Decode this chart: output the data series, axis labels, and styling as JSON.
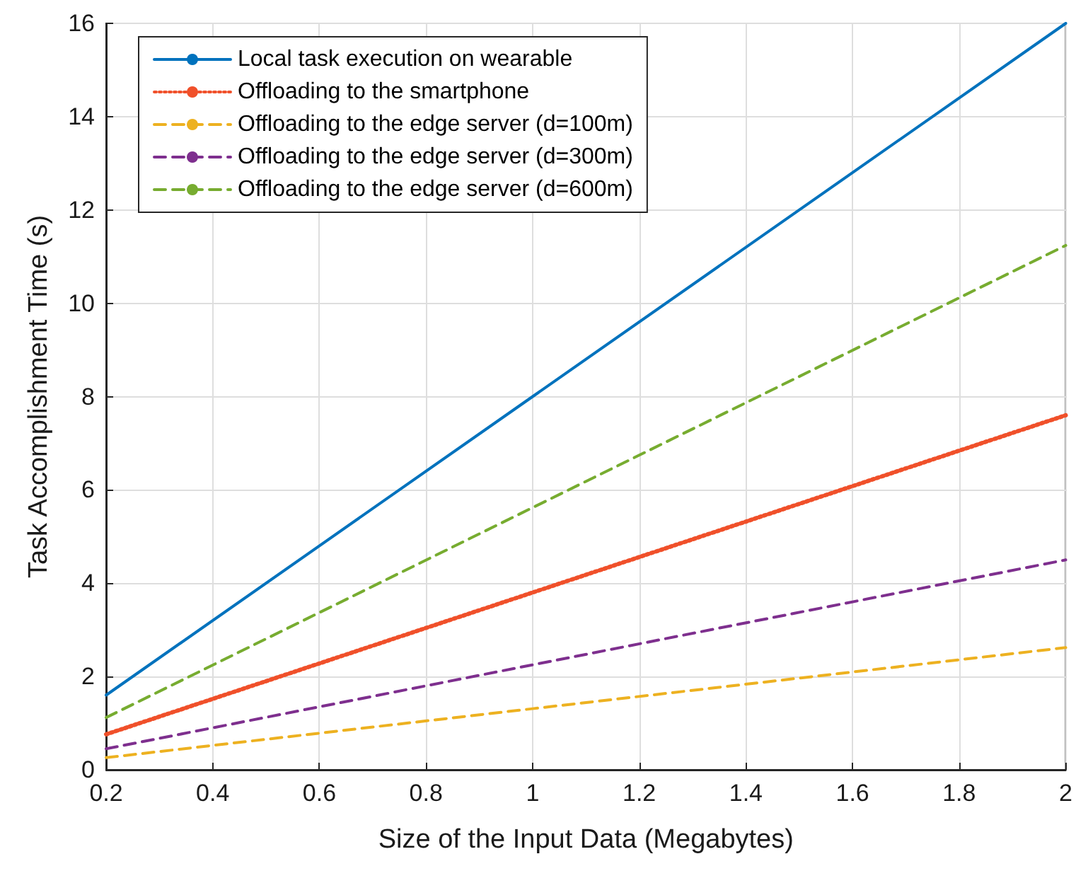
{
  "chart_data": {
    "type": "line",
    "xlabel": "Size of the Input Data (Megabytes)",
    "ylabel": "Task Accomplishment Time (s)",
    "x": [
      0.2,
      1,
      2
    ],
    "series": [
      {
        "name": "Local task execution on wearable",
        "color": "#0072bd",
        "line_style": "solid",
        "values": [
          1.6,
          8,
          16
        ]
      },
      {
        "name": "Offloading to the smartphone",
        "color": "#f0502a",
        "line_style": "dotted",
        "values": [
          0.76,
          3.8,
          7.6
        ]
      },
      {
        "name": "Offloading to the edge server (d=100m)",
        "color": "#edb120",
        "line_style": "dashed",
        "values": [
          0.26,
          1.31,
          2.62
        ]
      },
      {
        "name": "Offloading to the edge server (d=300m)",
        "color": "#7e2f8e",
        "line_style": "dashed",
        "values": [
          0.45,
          2.25,
          4.5
        ]
      },
      {
        "name": "Offloading to the edge server (d=600m)",
        "color": "#77ac30",
        "line_style": "dashed",
        "values": [
          1.12,
          5.62,
          11.24
        ]
      }
    ],
    "xlim": [
      0.2,
      2
    ],
    "xticks": [
      0.2,
      0.4,
      0.6,
      0.8,
      1,
      1.2,
      1.4,
      1.6,
      1.8,
      2
    ],
    "ylim": [
      0,
      16
    ],
    "yticks": [
      0,
      2,
      4,
      6,
      8,
      10,
      12,
      14,
      16
    ],
    "grid": true,
    "legend": "top left",
    "marker": "none"
  }
}
